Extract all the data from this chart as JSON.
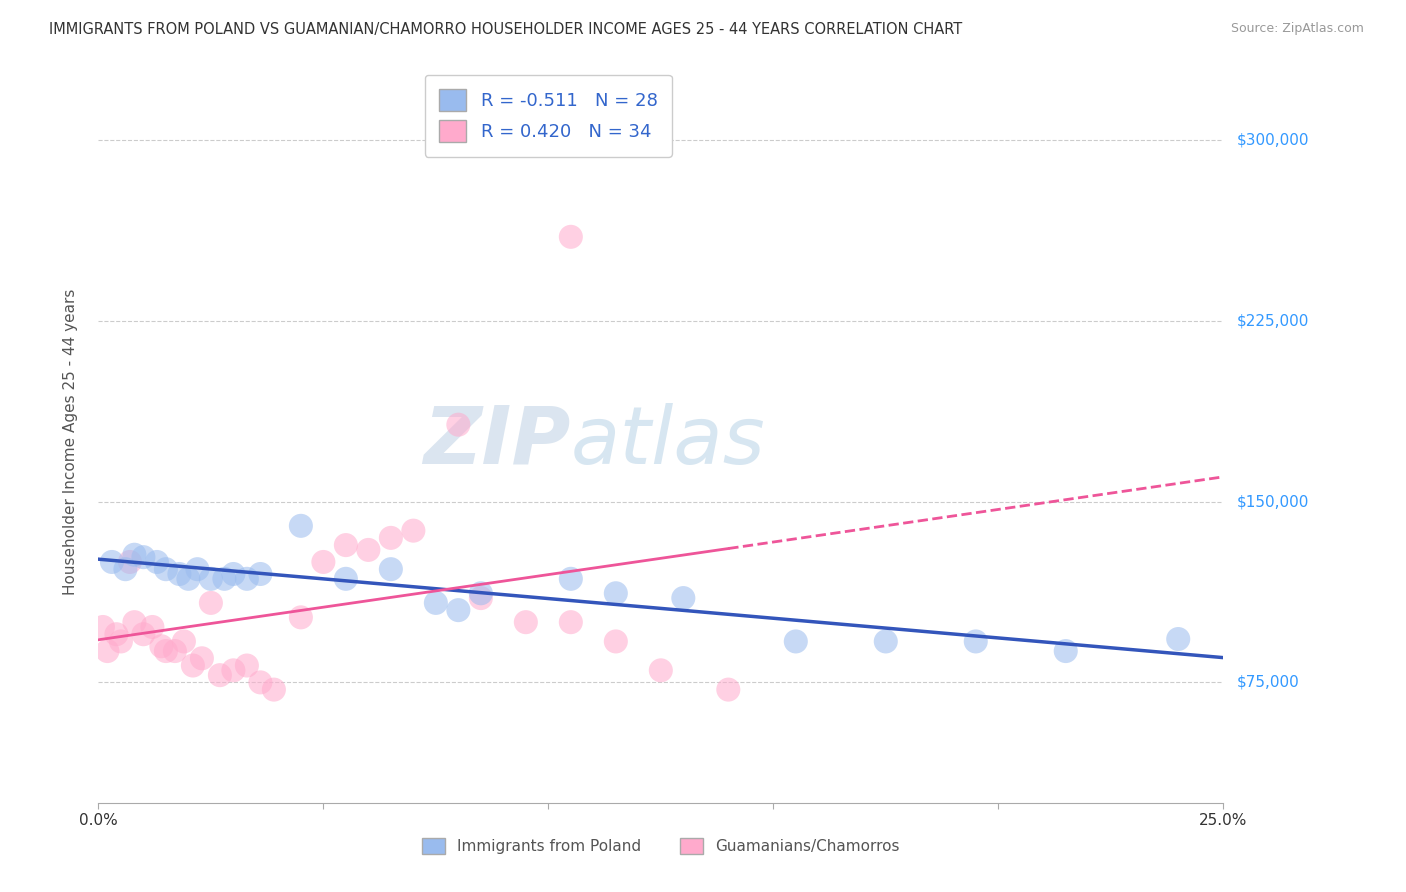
{
  "title": "IMMIGRANTS FROM POLAND VS GUAMANIAN/CHAMORRO HOUSEHOLDER INCOME AGES 25 - 44 YEARS CORRELATION CHART",
  "source": "Source: ZipAtlas.com",
  "ylabel": "Householder Income Ages 25 - 44 years",
  "ytick_labels": [
    "$75,000",
    "$150,000",
    "$225,000",
    "$300,000"
  ],
  "ytick_values": [
    75000,
    150000,
    225000,
    300000
  ],
  "xmin": 0.0,
  "xmax": 25.0,
  "ymin": 25000,
  "ymax": 325000,
  "legend_label1": "R = -0.511   N = 28",
  "legend_label2": "R = 0.420   N = 34",
  "legend_bottom_label1": "Immigrants from Poland",
  "legend_bottom_label2": "Guamanians/Chamorros",
  "poland_color": "#99BBEE",
  "guam_color": "#FFAACC",
  "poland_line_color": "#3355BB",
  "guam_line_color": "#EE5599",
  "poland_x": [
    0.3,
    0.6,
    0.8,
    1.0,
    1.3,
    1.5,
    1.8,
    2.0,
    2.2,
    2.5,
    2.8,
    3.0,
    3.3,
    3.6,
    4.5,
    5.5,
    6.5,
    7.5,
    8.5,
    10.5,
    13.0,
    15.5,
    17.5,
    19.5,
    21.5,
    24.0,
    8.0,
    11.5
  ],
  "poland_y": [
    125000,
    122000,
    128000,
    127000,
    125000,
    122000,
    120000,
    118000,
    122000,
    118000,
    118000,
    120000,
    118000,
    120000,
    140000,
    118000,
    122000,
    108000,
    112000,
    118000,
    110000,
    92000,
    92000,
    92000,
    88000,
    93000,
    105000,
    112000
  ],
  "guam_x": [
    0.1,
    0.2,
    0.4,
    0.5,
    0.7,
    0.8,
    1.0,
    1.2,
    1.4,
    1.5,
    1.7,
    1.9,
    2.1,
    2.3,
    2.5,
    2.7,
    3.0,
    3.3,
    3.6,
    3.9,
    4.5,
    5.0,
    5.5,
    6.0,
    6.5,
    7.0,
    8.5,
    9.5,
    10.5,
    11.5,
    12.5,
    14.0,
    8.0,
    10.5
  ],
  "guam_y": [
    98000,
    88000,
    95000,
    92000,
    125000,
    100000,
    95000,
    98000,
    90000,
    88000,
    88000,
    92000,
    82000,
    85000,
    108000,
    78000,
    80000,
    82000,
    75000,
    72000,
    102000,
    125000,
    132000,
    130000,
    135000,
    138000,
    110000,
    100000,
    100000,
    92000,
    80000,
    72000,
    182000,
    260000
  ],
  "watermark_zip": "ZIP",
  "watermark_atlas": "atlas",
  "background_color": "#FFFFFF",
  "grid_color": "#CCCCCC"
}
